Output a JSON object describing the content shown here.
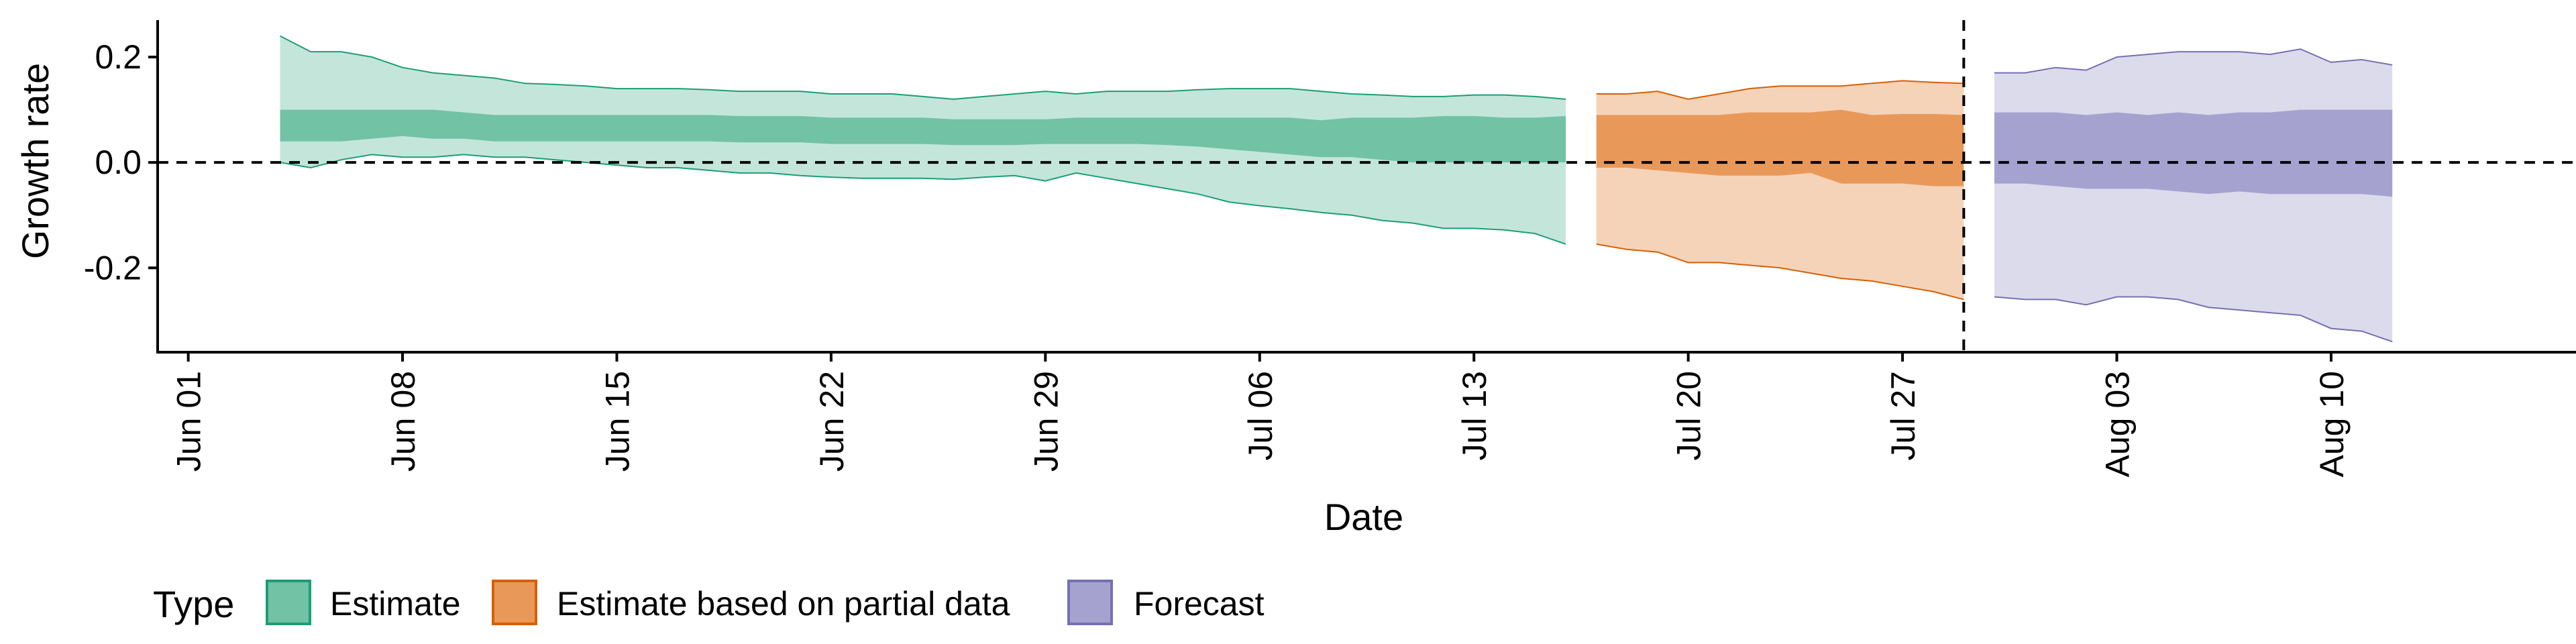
{
  "chart_data": {
    "type": "area",
    "xlabel": "Date",
    "ylabel": "Growth rate",
    "xlim": [
      "2020-05-31",
      "2020-08-18"
    ],
    "ylim": [
      -0.36,
      0.27
    ],
    "y_ticks": [
      0.2,
      0.0,
      -0.2
    ],
    "y_tick_labels": [
      "0.2",
      "0.0",
      "-0.2"
    ],
    "x_ticks": [
      "2020-06-01",
      "2020-06-08",
      "2020-06-15",
      "2020-06-22",
      "2020-06-29",
      "2020-07-06",
      "2020-07-13",
      "2020-07-20",
      "2020-07-27",
      "2020-08-03",
      "2020-08-10"
    ],
    "x_tick_labels": [
      "Jun 01",
      "Jun 08",
      "Jun 15",
      "Jun 22",
      "Jun 29",
      "Jul 06",
      "Jul 13",
      "Jul 20",
      "Jul 27",
      "Aug 03",
      "Aug 10"
    ],
    "reference_lines": {
      "horizontal_y": 0.0,
      "vertical_date": "2020-07-29",
      "style": "dashed"
    },
    "grid": false,
    "legend": {
      "title": "Type",
      "position": "bottom",
      "entries": [
        {
          "label": "Estimate",
          "fill": "#72C2A5",
          "border": "#1B9E77"
        },
        {
          "label": "Estimate based on partial data",
          "fill": "#E8995A",
          "border": "#D95F02"
        },
        {
          "label": "Forecast",
          "fill": "#A6A2D0",
          "border": "#7570B3"
        }
      ]
    },
    "series": [
      {
        "name": "Estimate",
        "outer_color": "#C4E6DA",
        "inner_color": "#72C2A5",
        "line_color": "#1B9E77",
        "x": [
          "2020-06-04",
          "2020-06-05",
          "2020-06-06",
          "2020-06-07",
          "2020-06-08",
          "2020-06-09",
          "2020-06-10",
          "2020-06-11",
          "2020-06-12",
          "2020-06-13",
          "2020-06-14",
          "2020-06-15",
          "2020-06-16",
          "2020-06-17",
          "2020-06-18",
          "2020-06-19",
          "2020-06-20",
          "2020-06-21",
          "2020-06-22",
          "2020-06-23",
          "2020-06-24",
          "2020-06-25",
          "2020-06-26",
          "2020-06-27",
          "2020-06-28",
          "2020-06-29",
          "2020-06-30",
          "2020-07-01",
          "2020-07-02",
          "2020-07-03",
          "2020-07-04",
          "2020-07-05",
          "2020-07-06",
          "2020-07-07",
          "2020-07-08",
          "2020-07-09",
          "2020-07-10",
          "2020-07-11",
          "2020-07-12",
          "2020-07-13",
          "2020-07-14",
          "2020-07-15",
          "2020-07-16"
        ],
        "upper90": [
          0.24,
          0.21,
          0.21,
          0.2,
          0.18,
          0.17,
          0.165,
          0.16,
          0.15,
          0.148,
          0.145,
          0.14,
          0.14,
          0.14,
          0.138,
          0.135,
          0.135,
          0.135,
          0.13,
          0.13,
          0.13,
          0.125,
          0.12,
          0.125,
          0.13,
          0.135,
          0.13,
          0.135,
          0.135,
          0.135,
          0.138,
          0.14,
          0.14,
          0.14,
          0.135,
          0.13,
          0.128,
          0.125,
          0.125,
          0.128,
          0.128,
          0.125,
          0.12
        ],
        "upper50": [
          0.1,
          0.1,
          0.1,
          0.1,
          0.1,
          0.1,
          0.095,
          0.09,
          0.09,
          0.09,
          0.09,
          0.09,
          0.09,
          0.09,
          0.09,
          0.088,
          0.088,
          0.088,
          0.085,
          0.085,
          0.085,
          0.085,
          0.082,
          0.082,
          0.082,
          0.082,
          0.085,
          0.085,
          0.085,
          0.085,
          0.085,
          0.085,
          0.085,
          0.085,
          0.08,
          0.085,
          0.085,
          0.085,
          0.088,
          0.088,
          0.085,
          0.085,
          0.088
        ],
        "lower50": [
          0.04,
          0.04,
          0.04,
          0.045,
          0.05,
          0.045,
          0.045,
          0.04,
          0.04,
          0.04,
          0.04,
          0.04,
          0.04,
          0.04,
          0.04,
          0.038,
          0.038,
          0.038,
          0.035,
          0.035,
          0.035,
          0.035,
          0.033,
          0.033,
          0.033,
          0.035,
          0.035,
          0.035,
          0.035,
          0.033,
          0.03,
          0.025,
          0.02,
          0.015,
          0.01,
          0.01,
          0.005,
          0.0,
          0.0,
          0.0,
          0.0,
          0.0,
          0.0
        ],
        "lower90": [
          0.0,
          -0.01,
          0.005,
          0.015,
          0.01,
          0.01,
          0.015,
          0.01,
          0.01,
          0.005,
          0.0,
          -0.005,
          -0.01,
          -0.01,
          -0.015,
          -0.02,
          -0.02,
          -0.025,
          -0.028,
          -0.03,
          -0.03,
          -0.03,
          -0.032,
          -0.028,
          -0.025,
          -0.035,
          -0.02,
          -0.03,
          -0.04,
          -0.05,
          -0.06,
          -0.075,
          -0.082,
          -0.088,
          -0.095,
          -0.1,
          -0.11,
          -0.115,
          -0.125,
          -0.125,
          -0.128,
          -0.135,
          -0.155
        ]
      },
      {
        "name": "Estimate based on partial data",
        "outer_color": "#F5D3B9",
        "inner_color": "#E8995A",
        "line_color": "#D95F02",
        "x": [
          "2020-07-17",
          "2020-07-18",
          "2020-07-19",
          "2020-07-20",
          "2020-07-21",
          "2020-07-22",
          "2020-07-23",
          "2020-07-24",
          "2020-07-25",
          "2020-07-26",
          "2020-07-27",
          "2020-07-28",
          "2020-07-29"
        ],
        "upper90": [
          0.13,
          0.13,
          0.135,
          0.12,
          0.13,
          0.14,
          0.145,
          0.145,
          0.145,
          0.15,
          0.155,
          0.152,
          0.15
        ],
        "upper50": [
          0.09,
          0.09,
          0.09,
          0.09,
          0.09,
          0.095,
          0.095,
          0.095,
          0.1,
          0.09,
          0.092,
          0.092,
          0.09
        ],
        "lower50": [
          -0.01,
          -0.01,
          -0.015,
          -0.02,
          -0.025,
          -0.025,
          -0.025,
          -0.02,
          -0.04,
          -0.04,
          -0.04,
          -0.045,
          -0.045
        ],
        "lower90": [
          -0.155,
          -0.165,
          -0.17,
          -0.19,
          -0.19,
          -0.195,
          -0.2,
          -0.21,
          -0.22,
          -0.225,
          -0.235,
          -0.245,
          -0.26
        ]
      },
      {
        "name": "Forecast",
        "outer_color": "#DCDBEC",
        "inner_color": "#A6A2D0",
        "line_color": "#7570B3",
        "x": [
          "2020-07-30",
          "2020-07-31",
          "2020-08-01",
          "2020-08-02",
          "2020-08-03",
          "2020-08-04",
          "2020-08-05",
          "2020-08-06",
          "2020-08-07",
          "2020-08-08",
          "2020-08-09",
          "2020-08-10",
          "2020-08-11",
          "2020-08-12"
        ],
        "upper90": [
          0.17,
          0.17,
          0.18,
          0.175,
          0.2,
          0.205,
          0.21,
          0.21,
          0.21,
          0.205,
          0.215,
          0.19,
          0.195,
          0.185
        ],
        "upper50": [
          0.095,
          0.095,
          0.095,
          0.09,
          0.095,
          0.09,
          0.095,
          0.09,
          0.095,
          0.095,
          0.1,
          0.1,
          0.1,
          0.1
        ],
        "lower50": [
          -0.04,
          -0.04,
          -0.045,
          -0.05,
          -0.05,
          -0.05,
          -0.055,
          -0.06,
          -0.055,
          -0.06,
          -0.06,
          -0.06,
          -0.06,
          -0.065
        ],
        "lower90": [
          -0.255,
          -0.26,
          -0.26,
          -0.27,
          -0.255,
          -0.255,
          -0.26,
          -0.275,
          -0.28,
          -0.285,
          -0.29,
          -0.315,
          -0.32,
          -0.34
        ]
      }
    ]
  }
}
